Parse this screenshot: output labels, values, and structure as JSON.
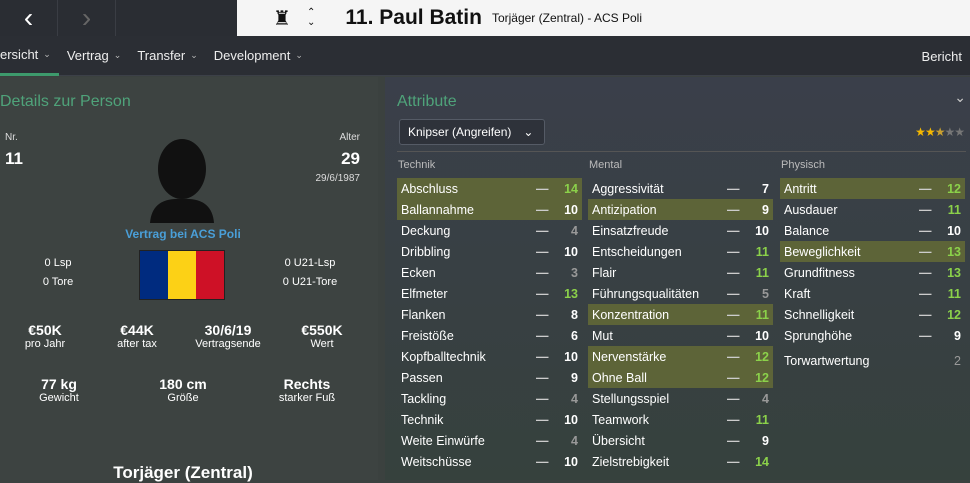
{
  "header": {
    "player_name": "11. Paul Batin",
    "subtitle": "Torjäger (Zentral) - ACS Poli"
  },
  "tabs": [
    {
      "label": "ersicht"
    },
    {
      "label": "Vertrag"
    },
    {
      "label": "Transfer"
    },
    {
      "label": "Development"
    }
  ],
  "tab_right": "Bericht",
  "details": {
    "title": "Details zur Person",
    "nr_label": "Nr.",
    "nr": "11",
    "age_label": "Alter",
    "age": "29",
    "dob": "29/6/1987",
    "contract": "Vertrag bei ACS Poli",
    "caps": "0 Lsp",
    "goals": "0 Tore",
    "u21_caps": "0 U21-Lsp",
    "u21_goals": "0 U21-Tore",
    "flag_colors": [
      "#002b7f",
      "#fcd116",
      "#ce1126"
    ],
    "finance": [
      {
        "value": "€50K",
        "label": "pro Jahr"
      },
      {
        "value": "€44K",
        "label": "after tax"
      },
      {
        "value": "30/6/19",
        "label": "Vertragsende"
      },
      {
        "value": "€550K",
        "label": "Wert"
      }
    ],
    "physical": [
      {
        "value": "77 kg",
        "label": "Gewicht"
      },
      {
        "value": "180 cm",
        "label": "Größe"
      },
      {
        "value": "Rechts",
        "label": "starker Fuß"
      }
    ],
    "position": "Torjäger (Zentral)"
  },
  "attributes": {
    "title": "Attribute",
    "role": "Knipser (Angreifen)",
    "rating_stars": 2.5,
    "rating_max": 5,
    "columns": [
      {
        "header": "Technik",
        "rows": [
          [
            "Abschluss",
            14,
            true
          ],
          [
            "Ballannahme",
            10,
            true
          ],
          [
            "Deckung",
            4,
            false
          ],
          [
            "Dribbling",
            10,
            false
          ],
          [
            "Ecken",
            3,
            false
          ],
          [
            "Elfmeter",
            13,
            false
          ],
          [
            "Flanken",
            8,
            false
          ],
          [
            "Freistöße",
            6,
            false
          ],
          [
            "Kopfballtechnik",
            10,
            false
          ],
          [
            "Passen",
            9,
            false
          ],
          [
            "Tackling",
            4,
            false
          ],
          [
            "Technik",
            10,
            false
          ],
          [
            "Weite Einwürfe",
            4,
            false
          ],
          [
            "Weitschüsse",
            10,
            false
          ]
        ]
      },
      {
        "header": "Mental",
        "rows": [
          [
            "Aggressivität",
            7,
            false
          ],
          [
            "Antizipation",
            9,
            true
          ],
          [
            "Einsatzfreude",
            10,
            false
          ],
          [
            "Entscheidungen",
            11,
            false
          ],
          [
            "Flair",
            11,
            false
          ],
          [
            "Führungsqualitäten",
            5,
            false
          ],
          [
            "Konzentration",
            11,
            true
          ],
          [
            "Mut",
            10,
            false
          ],
          [
            "Nervenstärke",
            12,
            true
          ],
          [
            "Ohne Ball",
            12,
            true
          ],
          [
            "Stellungsspiel",
            4,
            false
          ],
          [
            "Teamwork",
            11,
            false
          ],
          [
            "Übersicht",
            9,
            false
          ],
          [
            "Zielstrebigkeit",
            14,
            false
          ]
        ]
      },
      {
        "header": "Physisch",
        "rows": [
          [
            "Antritt",
            12,
            true
          ],
          [
            "Ausdauer",
            11,
            false
          ],
          [
            "Balance",
            10,
            false
          ],
          [
            "Beweglichkeit",
            13,
            true
          ],
          [
            "Grundfitness",
            13,
            false
          ],
          [
            "Kraft",
            11,
            false
          ],
          [
            "Schnelligkeit",
            12,
            false
          ],
          [
            "Sprunghöhe",
            9,
            false
          ]
        ]
      }
    ],
    "gk_label": "Torwartwertung",
    "gk_value": "2"
  },
  "colors": {
    "accent": "#3d9a6c",
    "highlight": "#5d6438",
    "good": "#8bd14a"
  }
}
